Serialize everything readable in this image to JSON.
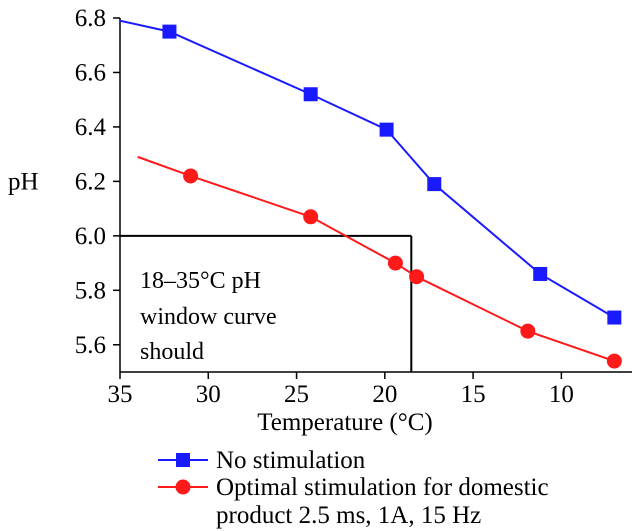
{
  "chart_data": {
    "type": "line",
    "xlabel": "Temperature (°C)",
    "ylabel": "pH",
    "xlim": [
      35,
      6
    ],
    "ylim": [
      5.5,
      6.8
    ],
    "x_reversed": true,
    "xticks": [
      35,
      30,
      25,
      20,
      15,
      10
    ],
    "yticks": [
      5.6,
      5.8,
      6.0,
      6.2,
      6.4,
      6.6,
      6.8
    ],
    "ytick_labels": [
      "5.6",
      "5.8",
      "6.0",
      "6.2",
      "6.4",
      "6.6",
      "6.8"
    ],
    "grid": false,
    "legend_position": "bottom",
    "series": [
      {
        "name": "No stimulation",
        "color": "#1a1aff",
        "marker": "square",
        "line_start": {
          "x": 35,
          "y": 6.79
        },
        "x": [
          32.2,
          24.2,
          19.9,
          17.2,
          11.2,
          7.0
        ],
        "y": [
          6.75,
          6.52,
          6.39,
          6.19,
          5.86,
          5.7
        ]
      },
      {
        "name": "Optimal stimulation for domestic",
        "name_line2": "product 2.5 ms, 1A, 15 Hz",
        "color": "#ff1a1a",
        "marker": "circle",
        "line_start": {
          "x": 34.0,
          "y": 6.29
        },
        "x": [
          31.0,
          24.2,
          19.4,
          18.2,
          11.9,
          7.0
        ],
        "y": [
          6.22,
          6.07,
          5.9,
          5.85,
          5.65,
          5.54
        ]
      }
    ],
    "annotation": {
      "lines": [
        "18–35°C  pH",
        "window curve",
        "should"
      ],
      "box_x": [
        35,
        18.5
      ],
      "box_y_top": 6.0
    }
  }
}
